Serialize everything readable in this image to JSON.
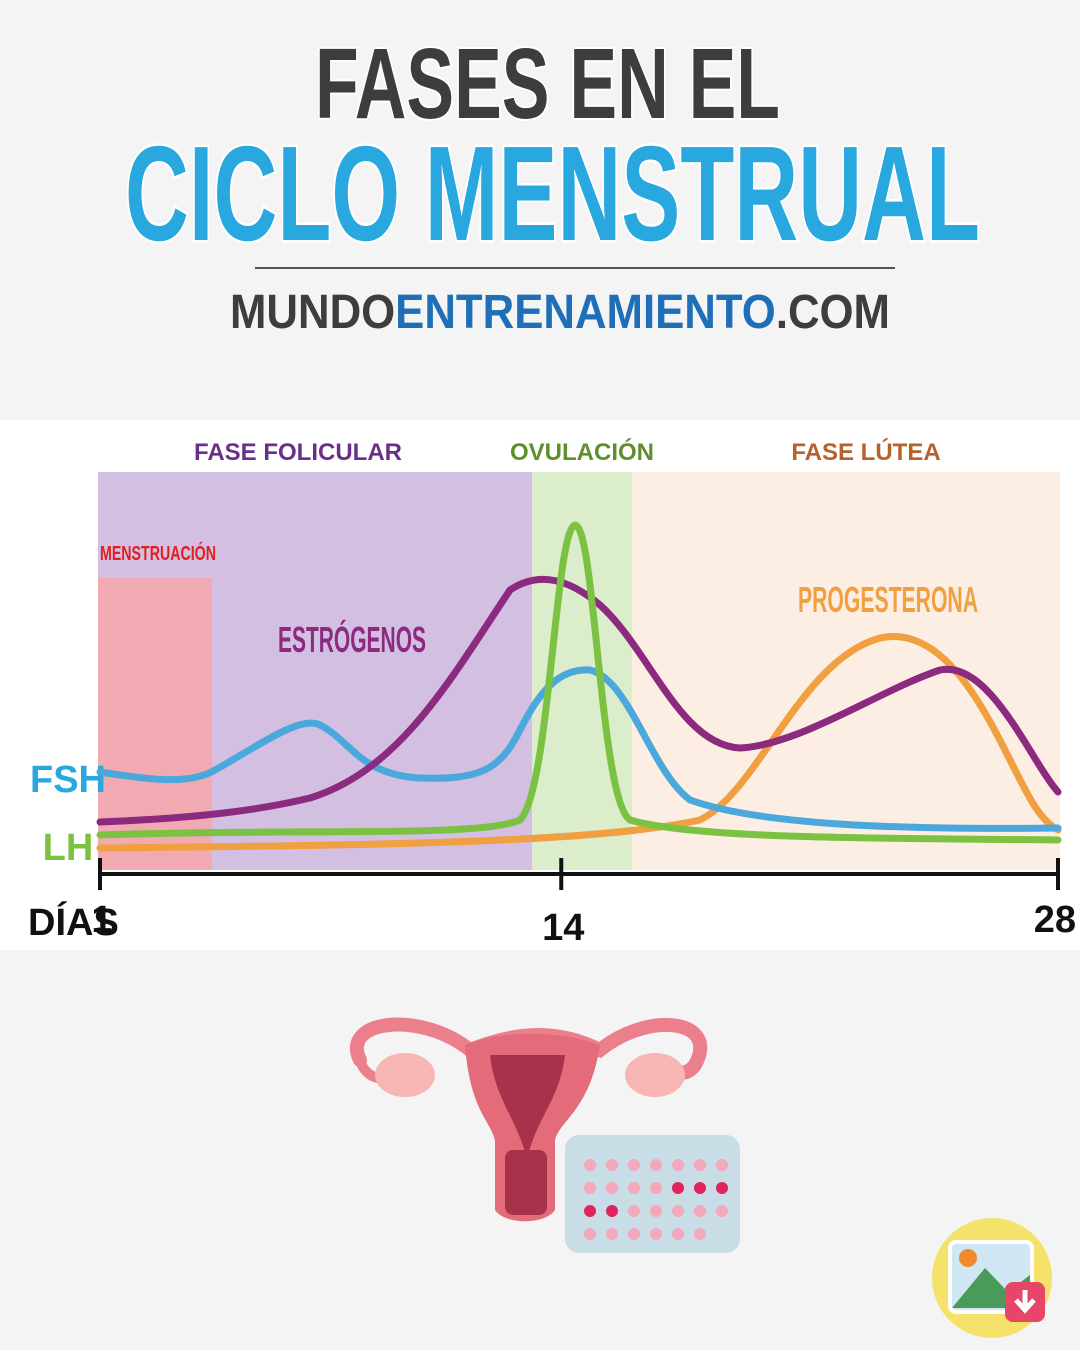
{
  "header": {
    "title_line1": "FASES EN EL",
    "title_line2": "CICLO MENSTRUAL",
    "site_part1": "MUNDO",
    "site_part2": "ENTRENAMIENTO",
    "site_part3": ".COM"
  },
  "chart": {
    "phases": [
      "FASE FOLICULAR",
      "OVULACIÓN",
      "FASE LÚTEA"
    ],
    "menstruation": "MENSTRUACIÓN",
    "hormones": {
      "estrogen": "ESTRÓGENOS",
      "progesterone": "PROGESTERONA",
      "fsh": "FSH",
      "lh": "LH"
    },
    "axis_label": "DÍAS",
    "days": [
      1,
      14,
      28
    ]
  }
}
